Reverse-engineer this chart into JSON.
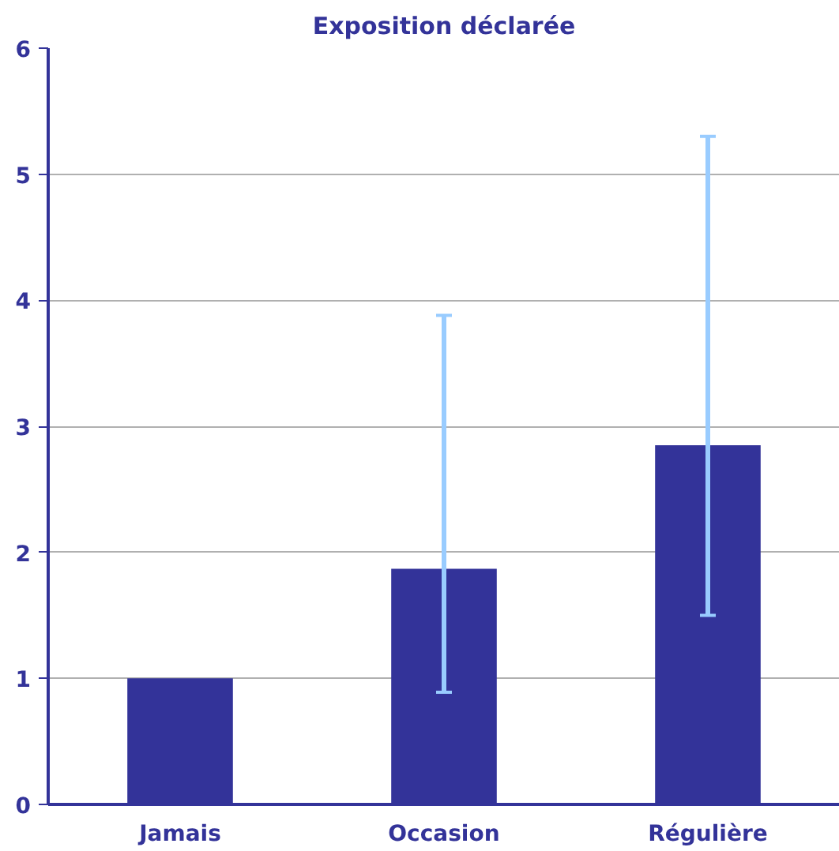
{
  "chart_data": {
    "type": "bar",
    "title": "Exposition déclarée",
    "categories": [
      "Jamais",
      "Occasion",
      "Régulière"
    ],
    "values": [
      1.0,
      1.87,
      2.85
    ],
    "color": "#333399",
    "errors": [
      null,
      [
        0.89,
        3.88
      ],
      [
        1.5,
        5.3
      ]
    ],
    "ylim": [
      0,
      6
    ],
    "yticks": [
      0,
      1,
      2,
      3,
      4,
      5,
      6
    ],
    "grid": "y"
  }
}
